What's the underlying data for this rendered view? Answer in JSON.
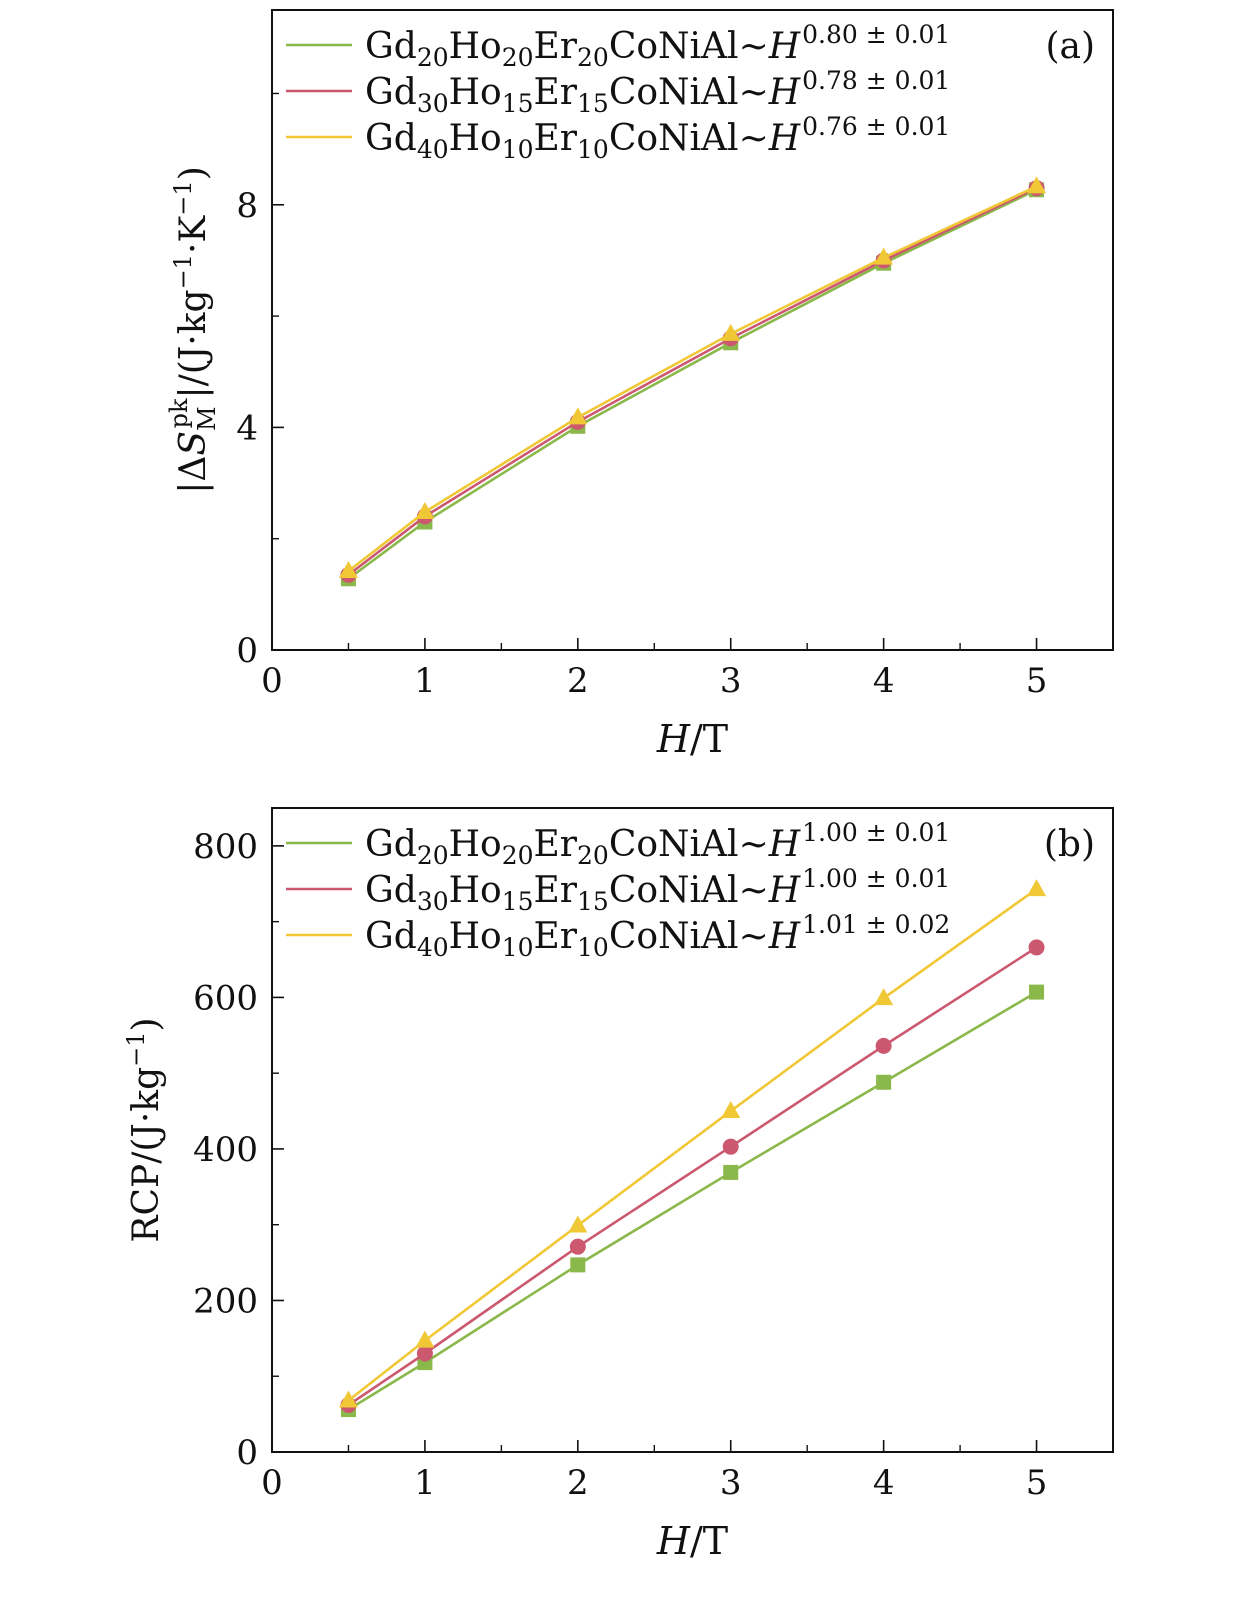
{
  "chart_data": [
    {
      "panel_label": "(a)",
      "type": "line",
      "xlabel_var": "H",
      "xlabel_unit": "/T",
      "ylabel": "|ΔS_M^pk|/(J·kg⁻¹·K⁻¹)",
      "xlim": [
        0,
        5.5
      ],
      "ylim": [
        0,
        11.5
      ],
      "x_ticks": [
        "0",
        "1",
        "2",
        "3",
        "4",
        "5"
      ],
      "y_ticks": [
        "0",
        "4",
        "8"
      ],
      "grid": false,
      "legend_position": "top-left",
      "x": [
        0.5,
        1,
        2,
        3,
        4,
        5
      ],
      "series": [
        {
          "name": "Gd20Ho20Er20CoNiAl~H^0.80 ± 0.01",
          "compound": "Gd20Ho20Er20CoNiAl",
          "exponent": "0.80 ± 0.01",
          "color": "#8ab84a",
          "marker": "square",
          "values": [
            1.28,
            2.3,
            4.02,
            5.52,
            6.95,
            8.27
          ]
        },
        {
          "name": "Gd30Ho15Er15CoNiAl~H^0.78 ± 0.01",
          "compound": "Gd30Ho15Er15CoNiAl",
          "exponent": "0.78 ± 0.01",
          "color": "#cc5870",
          "marker": "circle",
          "values": [
            1.35,
            2.4,
            4.1,
            5.6,
            7.0,
            8.3
          ]
        },
        {
          "name": "Gd40Ho10Er10CoNiAl~H^0.76 ± 0.01",
          "compound": "Gd40Ho10Er10CoNiAl",
          "exponent": "0.76 ± 0.01",
          "color": "#f0c836",
          "marker": "triangle",
          "values": [
            1.42,
            2.48,
            4.18,
            5.68,
            7.05,
            8.33
          ]
        }
      ]
    },
    {
      "panel_label": "(b)",
      "type": "line",
      "xlabel_var": "H",
      "xlabel_unit": "/T",
      "ylabel": "RCP/(J·kg⁻¹)",
      "xlim": [
        0,
        5.5
      ],
      "ylim": [
        0,
        850
      ],
      "x_ticks": [
        "0",
        "1",
        "2",
        "3",
        "4",
        "5"
      ],
      "y_ticks": [
        "0",
        "200",
        "400",
        "600",
        "800"
      ],
      "grid": false,
      "legend_position": "top-left",
      "x": [
        0.5,
        1,
        2,
        3,
        4,
        5
      ],
      "series": [
        {
          "name": "Gd20Ho20Er20CoNiAl~H^1.00 ± 0.01",
          "compound": "Gd20Ho20Er20CoNiAl",
          "exponent": "1.00 ± 0.01",
          "color": "#8ab84a",
          "marker": "square",
          "values": [
            56,
            118,
            247,
            369,
            488,
            607
          ]
        },
        {
          "name": "Gd30Ho15Er15CoNiAl~H^1.00 ± 0.01",
          "compound": "Gd30Ho15Er15CoNiAl",
          "exponent": "1.00 ± 0.01",
          "color": "#cc5870",
          "marker": "circle",
          "values": [
            62,
            130,
            271,
            403,
            536,
            666
          ]
        },
        {
          "name": "Gd40Ho10Er10CoNiAl~H^1.01 ± 0.02",
          "compound": "Gd40Ho10Er10CoNiAl",
          "exponent": "1.01 ± 0.02",
          "color": "#f0c836",
          "marker": "triangle",
          "values": [
            68,
            147,
            299,
            450,
            599,
            743
          ]
        }
      ]
    }
  ]
}
